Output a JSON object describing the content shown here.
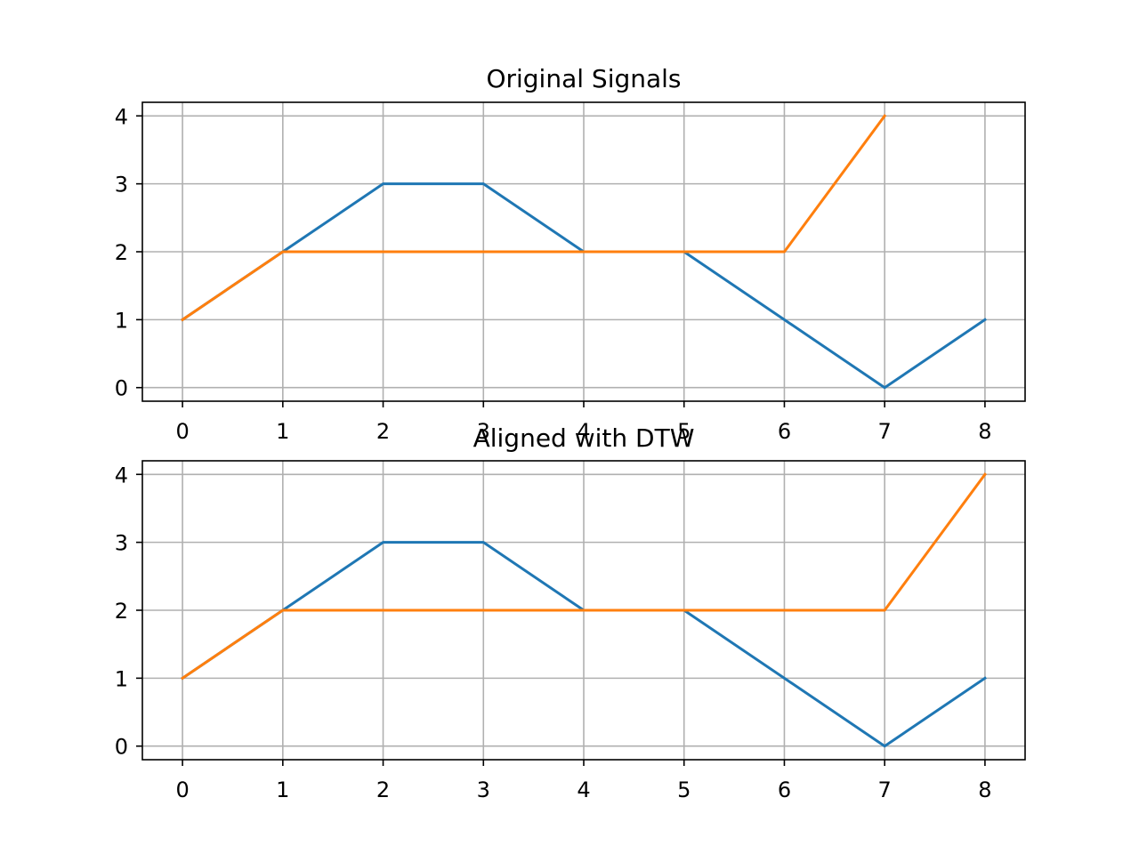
{
  "figure": {
    "background": "#ffffff",
    "grid_color": "#b0b0b0",
    "series_colors": [
      "#1f77b4",
      "#ff7f0e"
    ]
  },
  "chart_data": [
    {
      "type": "line",
      "title": "Original Signals",
      "xlabel": "",
      "ylabel": "",
      "xlim": [
        -0.4,
        8.4
      ],
      "ylim": [
        -0.2,
        4.2
      ],
      "xticks": [
        0,
        1,
        2,
        3,
        4,
        5,
        6,
        7,
        8
      ],
      "yticks": [
        0,
        1,
        2,
        3,
        4
      ],
      "grid": true,
      "legend": "none",
      "series": [
        {
          "x": [
            0,
            1,
            2,
            3,
            4,
            5,
            6,
            7,
            8
          ],
          "y": [
            1,
            2,
            3,
            3,
            2,
            2,
            1,
            0,
            1
          ],
          "color": "#1f77b4"
        },
        {
          "x": [
            0,
            1,
            2,
            3,
            4,
            5,
            6,
            7
          ],
          "y": [
            1,
            2,
            2,
            2,
            2,
            2,
            2,
            4
          ],
          "color": "#ff7f0e"
        }
      ]
    },
    {
      "type": "line",
      "title": "Aligned with DTW",
      "xlabel": "",
      "ylabel": "",
      "xlim": [
        -0.4,
        8.4
      ],
      "ylim": [
        -0.2,
        4.2
      ],
      "xticks": [
        0,
        1,
        2,
        3,
        4,
        5,
        6,
        7,
        8
      ],
      "yticks": [
        0,
        1,
        2,
        3,
        4
      ],
      "grid": true,
      "legend": "none",
      "series": [
        {
          "x": [
            0,
            1,
            2,
            3,
            4,
            5,
            6,
            7,
            8
          ],
          "y": [
            1,
            2,
            3,
            3,
            2,
            2,
            1,
            0,
            1
          ],
          "color": "#1f77b4"
        },
        {
          "x": [
            0,
            1,
            2,
            3,
            4,
            5,
            6,
            7,
            8
          ],
          "y": [
            1,
            2,
            2,
            2,
            2,
            2,
            2,
            2,
            4
          ],
          "color": "#ff7f0e"
        }
      ]
    }
  ]
}
